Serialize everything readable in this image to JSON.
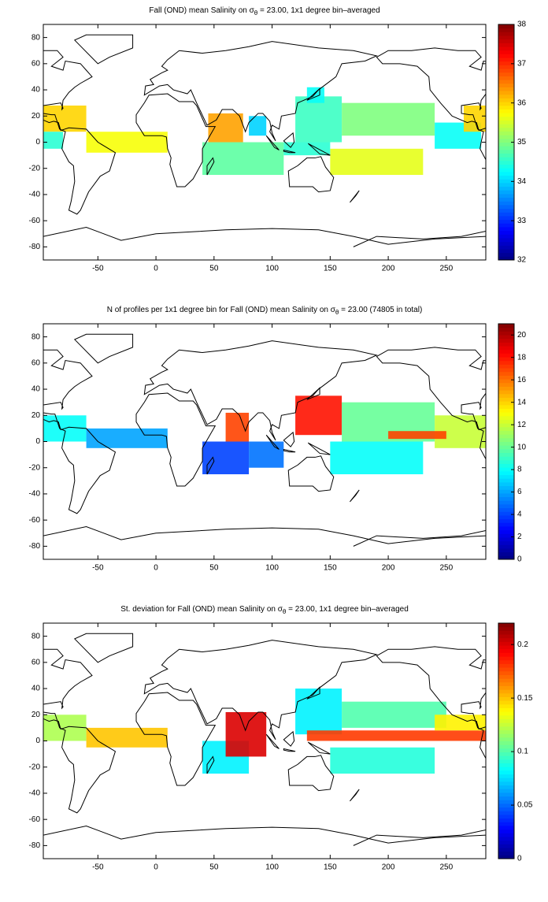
{
  "chart_data": [
    {
      "type": "heatmap",
      "title_parts": [
        "Fall (OND) mean Salinity on σ",
        "θ",
        " = 23.00, 1x1 degree bin–averaged"
      ],
      "xlim": [
        -97,
        284
      ],
      "ylim": [
        -90,
        90
      ],
      "xticks": [
        -50,
        0,
        50,
        100,
        150,
        200,
        250
      ],
      "yticks": [
        -80,
        -60,
        -40,
        -20,
        0,
        20,
        40,
        60,
        80
      ],
      "colormap": "jet",
      "clim": [
        32,
        38
      ],
      "cticks": [
        32,
        33,
        34,
        35,
        36,
        37,
        38
      ],
      "regions": [
        {
          "x": [
            -97,
            -60
          ],
          "y": [
            8,
            28
          ],
          "value": 36.0
        },
        {
          "x": [
            -97,
            -80
          ],
          "y": [
            -5,
            8
          ],
          "value": 34.5
        },
        {
          "x": [
            -60,
            10
          ],
          "y": [
            -8,
            8
          ],
          "value": 35.7
        },
        {
          "x": [
            45,
            75
          ],
          "y": [
            0,
            22
          ],
          "value": 36.3
        },
        {
          "x": [
            80,
            95
          ],
          "y": [
            5,
            20
          ],
          "value": 34.0
        },
        {
          "x": [
            40,
            110
          ],
          "y": [
            -25,
            0
          ],
          "value": 34.8
        },
        {
          "x": [
            120,
            160
          ],
          "y": [
            0,
            35
          ],
          "value": 34.6
        },
        {
          "x": [
            160,
            240
          ],
          "y": [
            5,
            30
          ],
          "value": 35.0
        },
        {
          "x": [
            150,
            230
          ],
          "y": [
            -25,
            -5
          ],
          "value": 35.6
        },
        {
          "x": [
            240,
            280
          ],
          "y": [
            -5,
            15
          ],
          "value": 34.3
        },
        {
          "x": [
            265,
            284
          ],
          "y": [
            8,
            28
          ],
          "value": 36.0
        },
        {
          "x": [
            130,
            145
          ],
          "y": [
            30,
            42
          ],
          "value": 34.3
        },
        {
          "x": [
            110,
            150
          ],
          "y": [
            -10,
            0
          ],
          "value": 34.5
        }
      ]
    },
    {
      "type": "heatmap",
      "title_parts": [
        "N of profiles per 1x1 degree bin for Fall (OND) mean Salinity on σ",
        "θ",
        " = 23.00 (74805 in total)"
      ],
      "xlim": [
        -97,
        284
      ],
      "ylim": [
        -90,
        90
      ],
      "xticks": [
        -50,
        0,
        50,
        100,
        150,
        200,
        250
      ],
      "yticks": [
        -80,
        -60,
        -40,
        -20,
        0,
        20,
        40,
        60,
        80
      ],
      "colormap": "jet",
      "clim": [
        0,
        21
      ],
      "cticks": [
        0,
        2,
        4,
        6,
        8,
        10,
        12,
        14,
        16,
        18,
        20
      ],
      "regions": [
        {
          "x": [
            -97,
            -60
          ],
          "y": [
            0,
            20
          ],
          "value": 8
        },
        {
          "x": [
            -60,
            10
          ],
          "y": [
            -5,
            10
          ],
          "value": 6
        },
        {
          "x": [
            40,
            80
          ],
          "y": [
            -25,
            0
          ],
          "value": 4
        },
        {
          "x": [
            60,
            80
          ],
          "y": [
            0,
            22
          ],
          "value": 17
        },
        {
          "x": [
            80,
            110
          ],
          "y": [
            -20,
            0
          ],
          "value": 5
        },
        {
          "x": [
            120,
            160
          ],
          "y": [
            5,
            35
          ],
          "value": 18
        },
        {
          "x": [
            160,
            240
          ],
          "y": [
            0,
            30
          ],
          "value": 10
        },
        {
          "x": [
            150,
            230
          ],
          "y": [
            -25,
            0
          ],
          "value": 8
        },
        {
          "x": [
            240,
            284
          ],
          "y": [
            -5,
            20
          ],
          "value": 12
        },
        {
          "x": [
            200,
            250
          ],
          "y": [
            2,
            8
          ],
          "value": 17
        }
      ]
    },
    {
      "type": "heatmap",
      "title_parts": [
        "St. deviation for Fall (OND) mean Salinity on σ",
        "θ",
        " = 23.00, 1x1 degree bin–averaged"
      ],
      "xlim": [
        -97,
        284
      ],
      "ylim": [
        -90,
        90
      ],
      "xticks": [
        -50,
        0,
        50,
        100,
        150,
        200,
        250
      ],
      "yticks": [
        -80,
        -60,
        -40,
        -20,
        0,
        20,
        40,
        60,
        80
      ],
      "colormap": "jet",
      "clim": [
        0,
        0.22
      ],
      "cticks": [
        0,
        0.05,
        0.1,
        0.15,
        0.2
      ],
      "regions": [
        {
          "x": [
            -97,
            -60
          ],
          "y": [
            0,
            20
          ],
          "value": 0.12
        },
        {
          "x": [
            -60,
            10
          ],
          "y": [
            -5,
            10
          ],
          "value": 0.15
        },
        {
          "x": [
            40,
            80
          ],
          "y": [
            -25,
            0
          ],
          "value": 0.08
        },
        {
          "x": [
            60,
            95
          ],
          "y": [
            -12,
            22
          ],
          "value": 0.2
        },
        {
          "x": [
            120,
            160
          ],
          "y": [
            5,
            40
          ],
          "value": 0.08
        },
        {
          "x": [
            160,
            250
          ],
          "y": [
            10,
            30
          ],
          "value": 0.1
        },
        {
          "x": [
            150,
            240
          ],
          "y": [
            -25,
            -5
          ],
          "value": 0.09
        },
        {
          "x": [
            130,
            284
          ],
          "y": [
            0,
            8
          ],
          "value": 0.18
        },
        {
          "x": [
            240,
            284
          ],
          "y": [
            8,
            20
          ],
          "value": 0.14
        }
      ]
    }
  ]
}
